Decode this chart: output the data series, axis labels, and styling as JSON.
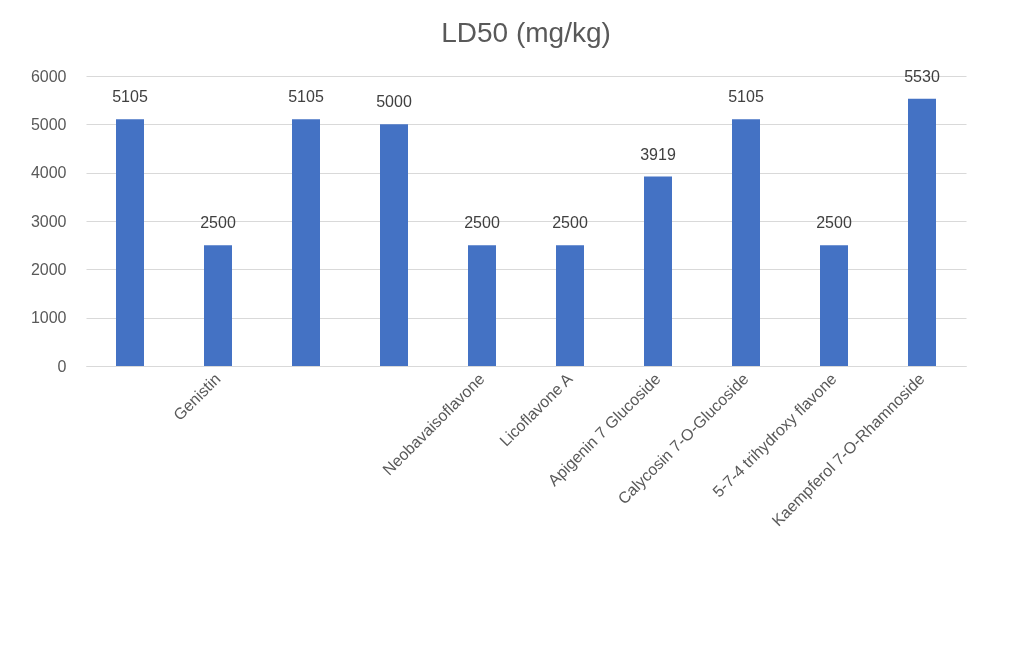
{
  "chart_data": {
    "type": "bar",
    "title": "LD50 (mg/kg)",
    "categories": [
      null,
      "Genistin",
      null,
      null,
      "Neobavaisoflavone",
      "Licoflavone A",
      "Apigenin 7 Glucoside",
      "Calycosin 7-O-Glucoside",
      "5-7-4 trihydroxy flavone",
      "Kaempferol 7-O-Rhamnoside"
    ],
    "values": [
      5105,
      2500,
      5105,
      5000,
      2500,
      2500,
      3919,
      5105,
      2500,
      5530
    ],
    "color": "#4472c4",
    "ylim": [
      0,
      6000
    ],
    "yticks": [
      0,
      1000,
      2000,
      3000,
      4000,
      5000,
      6000
    ],
    "grid": "y",
    "data_labels": true
  }
}
